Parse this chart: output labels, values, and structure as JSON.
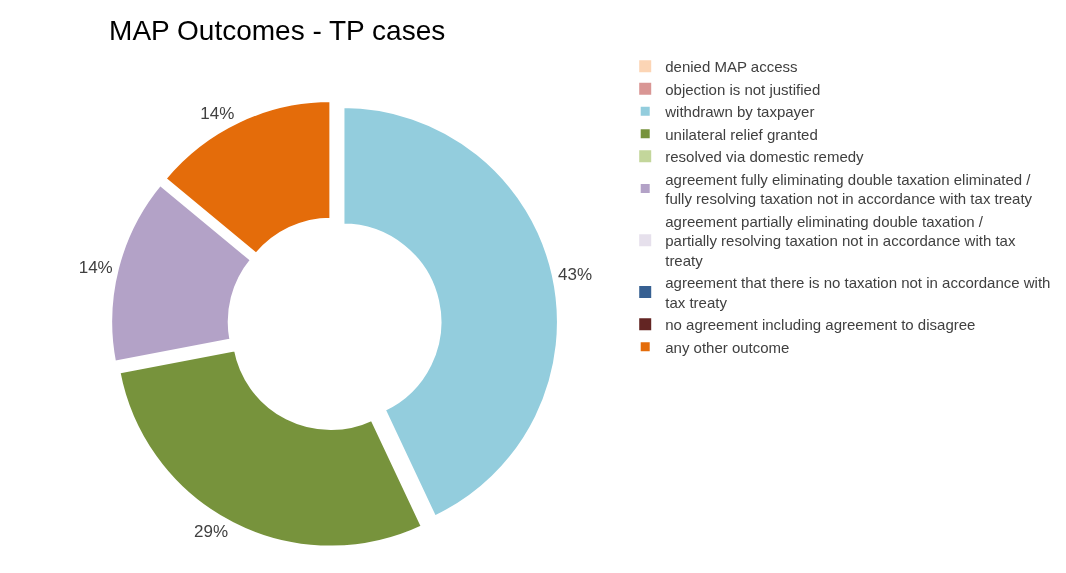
{
  "chart_data": {
    "type": "donut",
    "title": "MAP Outcomes - TP cases",
    "categories": [
      "denied MAP access",
      "objection is not justified",
      "withdrawn by taxpayer",
      "unilateral relief granted",
      "resolved via domestic remedy",
      "agreement fully eliminating double taxation eliminated / fully resolving taxation not in accordance with tax treaty",
      "agreement partially eliminating double taxation / partially resolving taxation not in accordance with tax treaty",
      "agreement that there is no taxation not in accordance with tax treaty",
      "no agreement including agreement to disagree",
      "any other outcome"
    ],
    "values": [
      0,
      0,
      43,
      29,
      0,
      14,
      0,
      0,
      0,
      14
    ],
    "value_labels": [
      null,
      null,
      "43%",
      "29%",
      null,
      "14%",
      null,
      null,
      null,
      "14%"
    ],
    "colors": [
      "#fcd5b5",
      "#d99694",
      "#93cddd",
      "#77933c",
      "#c3d69b",
      "#b3a2c7",
      "#e6e0ec",
      "#376092",
      "#632523",
      "#e46c0a"
    ],
    "legend": "right"
  }
}
